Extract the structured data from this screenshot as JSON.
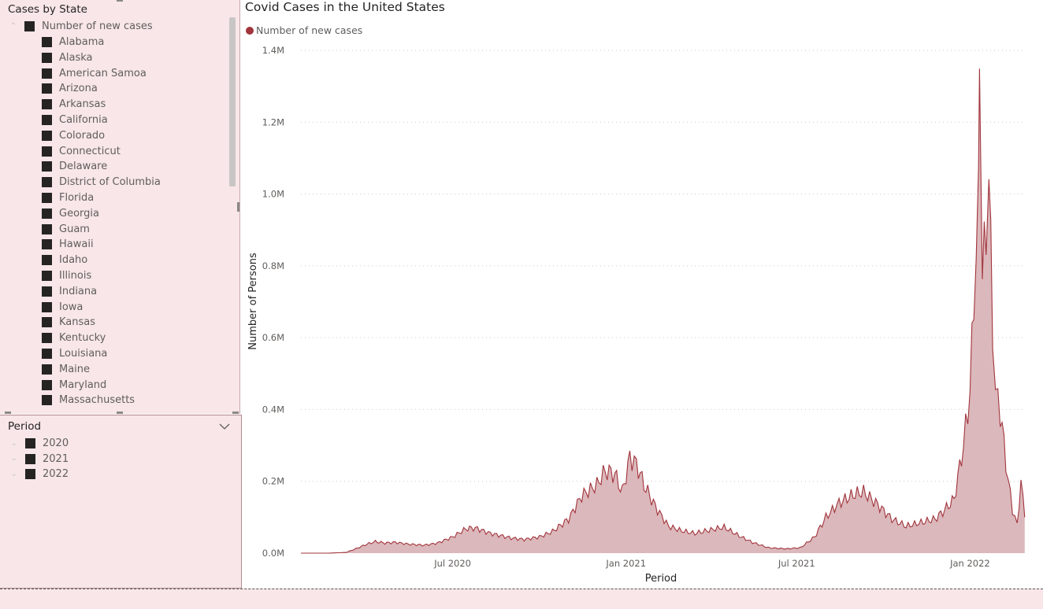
{
  "states_slicer": {
    "title": "Cases by State",
    "root_label": "Number of new cases",
    "items": [
      "Alabama",
      "Alaska",
      "American Samoa",
      "Arizona",
      "Arkansas",
      "California",
      "Colorado",
      "Connecticut",
      "Delaware",
      "District of Columbia",
      "Florida",
      "Georgia",
      "Guam",
      "Hawaii",
      "Idaho",
      "Illinois",
      "Indiana",
      "Iowa",
      "Kansas",
      "Kentucky",
      "Louisiana",
      "Maine",
      "Maryland",
      "Massachusetts"
    ]
  },
  "period_slicer": {
    "title": "Period",
    "items": [
      "2020",
      "2021",
      "2022"
    ]
  },
  "chart": {
    "title": "Covid Cases in the United States",
    "legend": "Number of new cases",
    "color": "#a1343c",
    "fill": "#dbb8bb"
  },
  "chart_data": {
    "type": "area",
    "title": "Covid Cases in the United States",
    "xlabel": "Period",
    "ylabel": "Number of Persons",
    "y_ticks": [
      "0.0M",
      "0.2M",
      "0.4M",
      "0.6M",
      "0.8M",
      "1.0M",
      "1.2M",
      "1.4M"
    ],
    "x_ticks": [
      {
        "date": "2020-07-01",
        "label": "Jul 2020"
      },
      {
        "date": "2021-01-01",
        "label": "Jan 2021"
      },
      {
        "date": "2021-07-01",
        "label": "Jul 2021"
      },
      {
        "date": "2022-01-01",
        "label": "Jan 2022"
      }
    ],
    "ylim": [
      0,
      1400000
    ],
    "xlim": [
      "2020-01-22",
      "2022-03-01"
    ],
    "grid": true,
    "legend_position": "top-left",
    "series": [
      {
        "name": "Number of new cases",
        "points": [
          [
            "2020-01-22",
            0
          ],
          [
            "2020-02-20",
            0
          ],
          [
            "2020-03-10",
            2000
          ],
          [
            "2020-03-20",
            12000
          ],
          [
            "2020-04-01",
            25000
          ],
          [
            "2020-04-10",
            32000
          ],
          [
            "2020-04-20",
            28000
          ],
          [
            "2020-05-01",
            30000
          ],
          [
            "2020-05-15",
            25000
          ],
          [
            "2020-06-01",
            22000
          ],
          [
            "2020-06-15",
            28000
          ],
          [
            "2020-07-01",
            45000
          ],
          [
            "2020-07-15",
            68000
          ],
          [
            "2020-07-25",
            70000
          ],
          [
            "2020-08-10",
            55000
          ],
          [
            "2020-09-01",
            42000
          ],
          [
            "2020-09-15",
            38000
          ],
          [
            "2020-10-01",
            45000
          ],
          [
            "2020-10-15",
            60000
          ],
          [
            "2020-11-01",
            95000
          ],
          [
            "2020-11-15",
            160000
          ],
          [
            "2020-12-01",
            190000
          ],
          [
            "2020-12-10",
            230000
          ],
          [
            "2020-12-20",
            220000
          ],
          [
            "2020-12-28",
            170000
          ],
          [
            "2021-01-05",
            265000
          ],
          [
            "2021-01-12",
            250000
          ],
          [
            "2021-01-20",
            190000
          ],
          [
            "2021-02-01",
            130000
          ],
          [
            "2021-02-15",
            75000
          ],
          [
            "2021-03-01",
            62000
          ],
          [
            "2021-03-15",
            55000
          ],
          [
            "2021-04-01",
            65000
          ],
          [
            "2021-04-15",
            72000
          ],
          [
            "2021-05-01",
            48000
          ],
          [
            "2021-05-15",
            30000
          ],
          [
            "2021-06-01",
            15000
          ],
          [
            "2021-06-20",
            12000
          ],
          [
            "2021-07-05",
            15000
          ],
          [
            "2021-07-20",
            45000
          ],
          [
            "2021-08-01",
            100000
          ],
          [
            "2021-08-15",
            140000
          ],
          [
            "2021-09-01",
            165000
          ],
          [
            "2021-09-10",
            170000
          ],
          [
            "2021-09-25",
            135000
          ],
          [
            "2021-10-10",
            95000
          ],
          [
            "2021-10-25",
            75000
          ],
          [
            "2021-11-10",
            85000
          ],
          [
            "2021-11-25",
            95000
          ],
          [
            "2021-12-05",
            120000
          ],
          [
            "2021-12-15",
            150000
          ],
          [
            "2021-12-25",
            300000
          ],
          [
            "2022-01-01",
            450000
          ],
          [
            "2022-01-05",
            700000
          ],
          [
            "2022-01-10",
            980000
          ],
          [
            "2022-01-11",
            1340000
          ],
          [
            "2022-01-14",
            800000
          ],
          [
            "2022-01-18",
            850000
          ],
          [
            "2022-01-21",
            1060000
          ],
          [
            "2022-01-25",
            600000
          ],
          [
            "2022-01-28",
            450000
          ],
          [
            "2022-02-02",
            400000
          ],
          [
            "2022-02-08",
            250000
          ],
          [
            "2022-02-15",
            120000
          ],
          [
            "2022-02-20",
            80000
          ],
          [
            "2022-02-24",
            200000
          ],
          [
            "2022-02-28",
            100000
          ]
        ]
      }
    ]
  }
}
